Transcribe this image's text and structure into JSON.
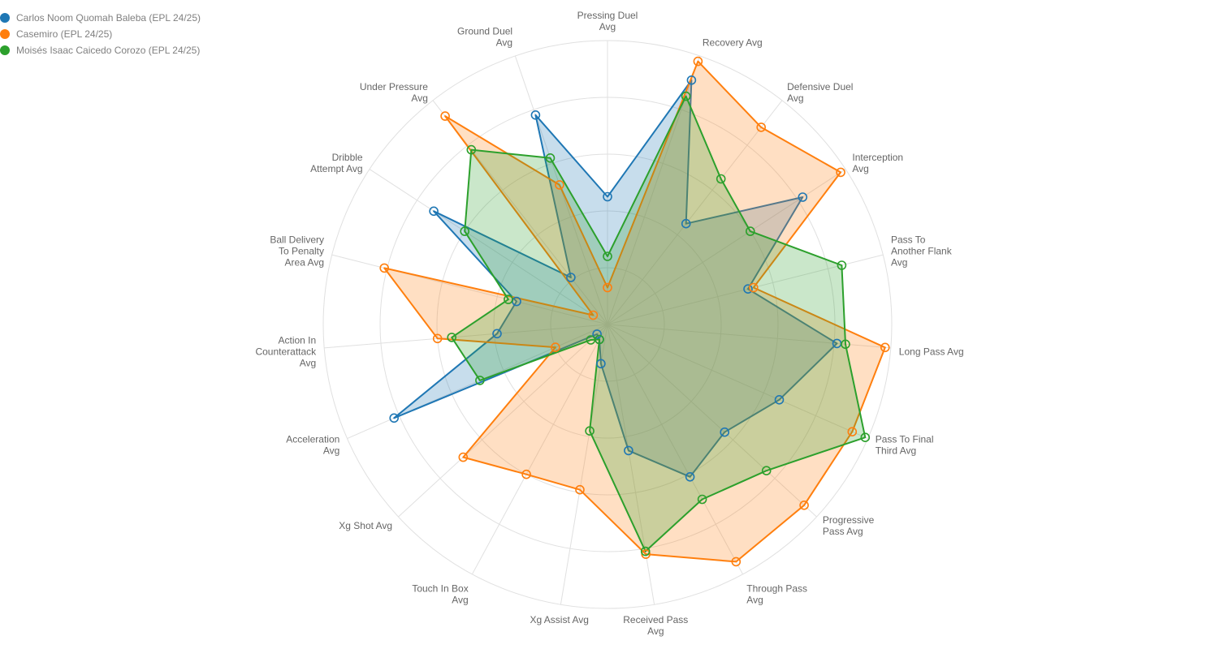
{
  "chart_data": {
    "type": "radar",
    "title": "",
    "axes": [
      [
        "Pressing Duel",
        "Avg"
      ],
      [
        "Recovery Avg"
      ],
      [
        "Defensive Duel",
        "Avg"
      ],
      [
        "Interception",
        "Avg"
      ],
      [
        "Pass To",
        "Another Flank",
        "Avg"
      ],
      [
        "Long Pass Avg"
      ],
      [
        "Pass To Final",
        "Third Avg"
      ],
      [
        "Progressive",
        "Pass Avg"
      ],
      [
        "Through Pass",
        "Avg"
      ],
      [
        "Received Pass",
        "Avg"
      ],
      [
        "Xg Assist Avg"
      ],
      [
        "Touch In Box",
        "Avg"
      ],
      [
        "Xg Shot Avg"
      ],
      [
        "Acceleration",
        "Avg"
      ],
      [
        "Action In",
        "Counterattack",
        "Avg"
      ],
      [
        "Ball Delivery",
        "To Penalty",
        "Area Avg"
      ],
      [
        "Dribble",
        "Attempt Avg"
      ],
      [
        "Under Pressure",
        "Avg"
      ],
      [
        "Ground Duel",
        "Avg"
      ]
    ],
    "range": [
      0,
      1
    ],
    "rings": 5,
    "grid": true,
    "legend_position": "top-left",
    "series": [
      {
        "name": "Carlos Noom Quomah Baleba (EPL 24/25)",
        "color": "#1f77b4",
        "values": [
          0.45,
          0.91,
          0.45,
          0.82,
          0.51,
          0.81,
          0.66,
          0.56,
          0.61,
          0.45,
          0.14,
          0.06,
          0.05,
          0.82,
          0.39,
          0.33,
          0.73,
          0.21,
          0.78
        ]
      },
      {
        "name": "Casemiro (EPL 24/25)",
        "color": "#ff7f0e",
        "values": [
          0.13,
          0.98,
          0.88,
          0.98,
          0.53,
          0.98,
          0.94,
          0.94,
          0.95,
          0.82,
          0.59,
          0.6,
          0.69,
          0.2,
          0.6,
          0.81,
          0.06,
          0.93,
          0.52
        ]
      },
      {
        "name": "Moisés Isaac Caicedo Corozo (EPL 24/25)",
        "color": "#2ca02c",
        "values": [
          0.24,
          0.85,
          0.65,
          0.6,
          0.85,
          0.84,
          0.99,
          0.76,
          0.7,
          0.81,
          0.38,
          0.06,
          0.08,
          0.49,
          0.55,
          0.36,
          0.6,
          0.78,
          0.62
        ]
      }
    ]
  }
}
